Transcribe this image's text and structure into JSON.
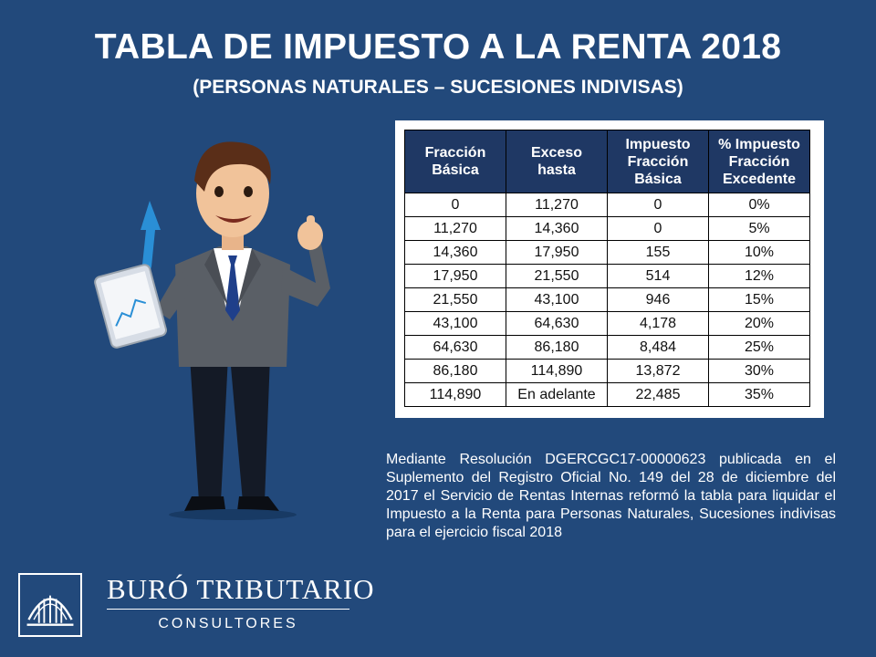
{
  "title": "TABLA DE IMPUESTO A LA RENTA 2018",
  "subtitle": "(PERSONAS NATURALES – SUCESIONES INDIVISAS)",
  "table": {
    "headers": [
      [
        "Fracción",
        "Básica"
      ],
      [
        "Exceso",
        "hasta"
      ],
      [
        "Impuesto",
        "Fracción",
        "Básica"
      ],
      [
        "% Impuesto",
        "Fracción",
        "Excedente"
      ]
    ],
    "rows": [
      [
        "0",
        "11,270",
        "0",
        "0%"
      ],
      [
        "11,270",
        "14,360",
        "0",
        "5%"
      ],
      [
        "14,360",
        "17,950",
        "155",
        "10%"
      ],
      [
        "17,950",
        "21,550",
        "514",
        "12%"
      ],
      [
        "21,550",
        "43,100",
        "946",
        "15%"
      ],
      [
        "43,100",
        "64,630",
        "4,178",
        "20%"
      ],
      [
        "64,630",
        "86,180",
        "8,484",
        "25%"
      ],
      [
        "86,180",
        "114,890",
        "13,872",
        "30%"
      ],
      [
        "114,890",
        "En adelante",
        "22,485",
        "35%"
      ]
    ]
  },
  "note": "Mediante Resolución DGERCGC17-00000623 publicada en el Suplemento del Registro Oficial No. 149 del 28 de diciembre del 2017 el Servicio de Rentas Internas reformó la tabla para liquidar el Impuesto a la Renta para Personas Naturales, Sucesiones indivisas para el ejercicio fiscal 2018",
  "logo": {
    "name": "BURÓ TRIBUTARIO",
    "sub": "CONSULTORES"
  },
  "colors": {
    "background": "#22497b",
    "header": "#1f3864",
    "arrow": "#2a8fd6"
  }
}
